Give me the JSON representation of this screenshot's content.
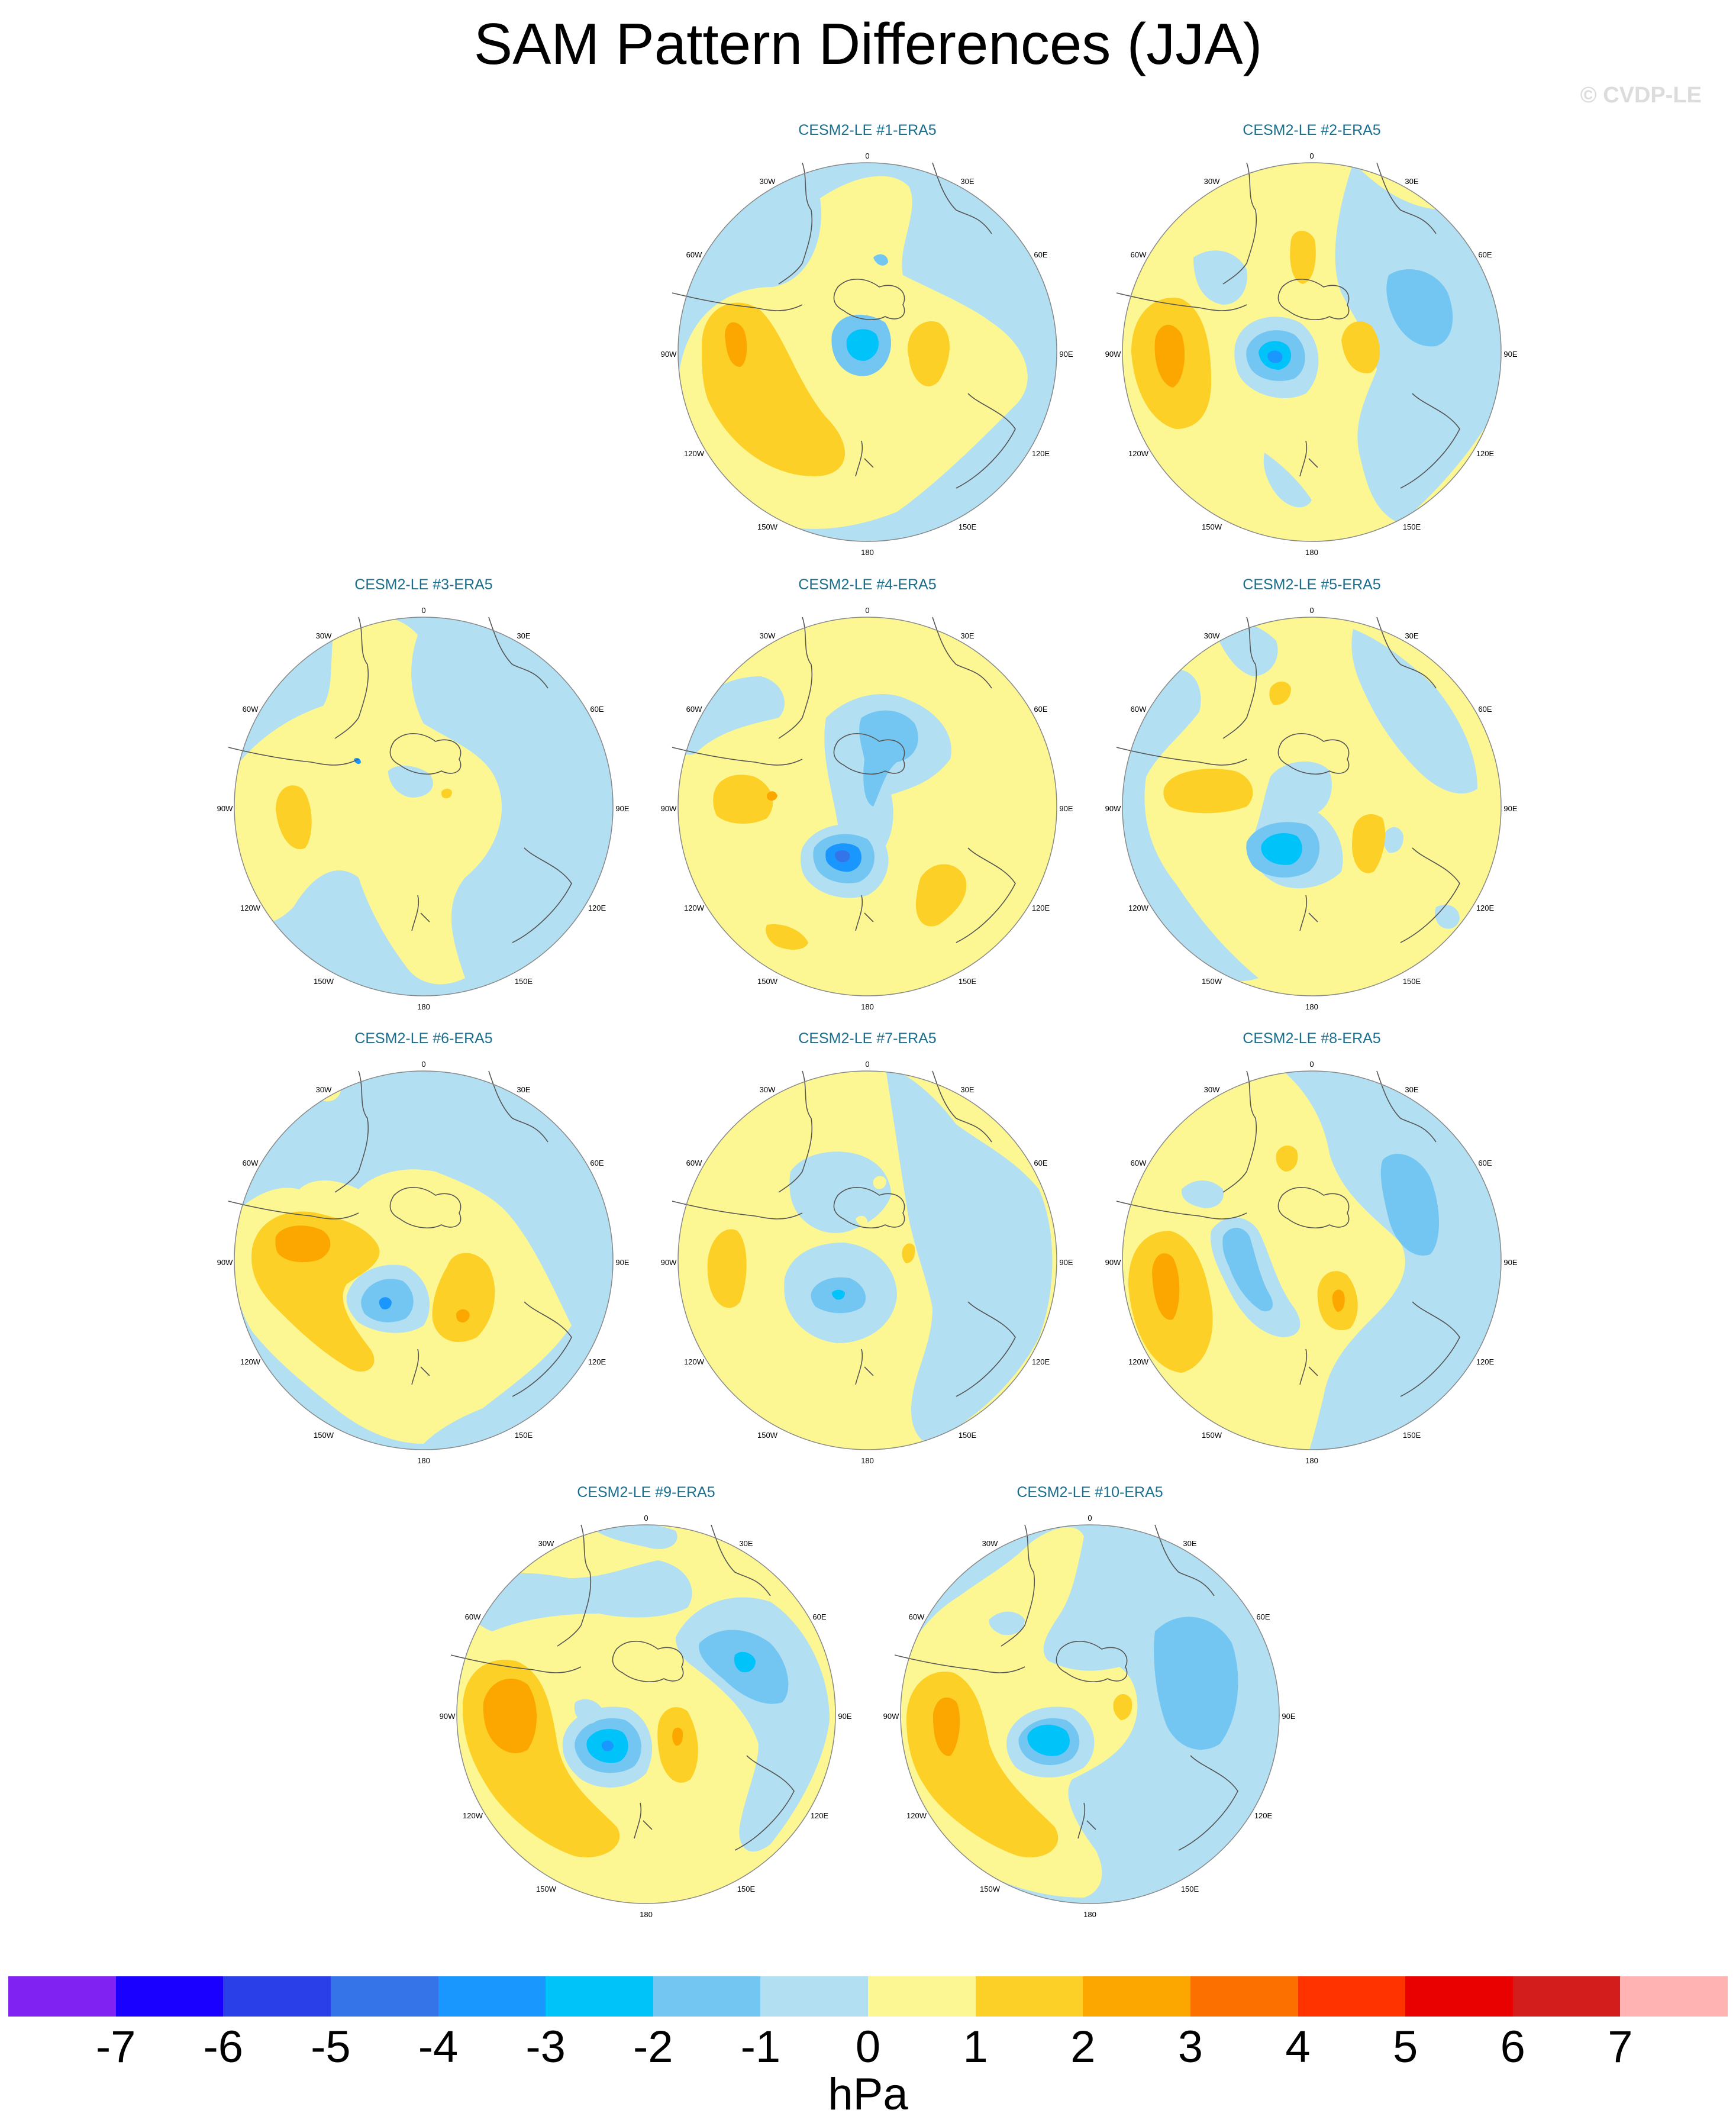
{
  "title": "SAM Pattern Differences (JJA)",
  "watermark": "© CVDP-LE",
  "lon_labels": [
    "0",
    "30E",
    "60E",
    "90E",
    "120E",
    "150E",
    "180",
    "150W",
    "120W",
    "90W",
    "60W",
    "30W"
  ],
  "panels": [
    {
      "title": "CESM2-LE #1-ERA5"
    },
    {
      "title": "CESM2-LE #2-ERA5"
    },
    {
      "title": "CESM2-LE #3-ERA5"
    },
    {
      "title": "CESM2-LE #4-ERA5"
    },
    {
      "title": "CESM2-LE #5-ERA5"
    },
    {
      "title": "CESM2-LE #6-ERA5"
    },
    {
      "title": "CESM2-LE #7-ERA5"
    },
    {
      "title": "CESM2-LE #8-ERA5"
    },
    {
      "title": "CESM2-LE #9-ERA5"
    },
    {
      "title": "CESM2-LE #10-ERA5"
    }
  ],
  "colorbar": {
    "colors": [
      "#8023f2",
      "#1a00ff",
      "#2a3fe8",
      "#3574e8",
      "#1a96ff",
      "#00c3fa",
      "#74c6f2",
      "#b3dff2",
      "#fcf792",
      "#fcd027",
      "#fca600",
      "#fc7000",
      "#ff3300",
      "#e90000",
      "#d31c1c",
      "#ffb3b3"
    ],
    "labels": [
      "-7",
      "-6",
      "-5",
      "-4",
      "-3",
      "-2",
      "-1",
      "0",
      "1",
      "2",
      "3",
      "4",
      "5",
      "6",
      "7"
    ],
    "units": "hPa"
  }
}
